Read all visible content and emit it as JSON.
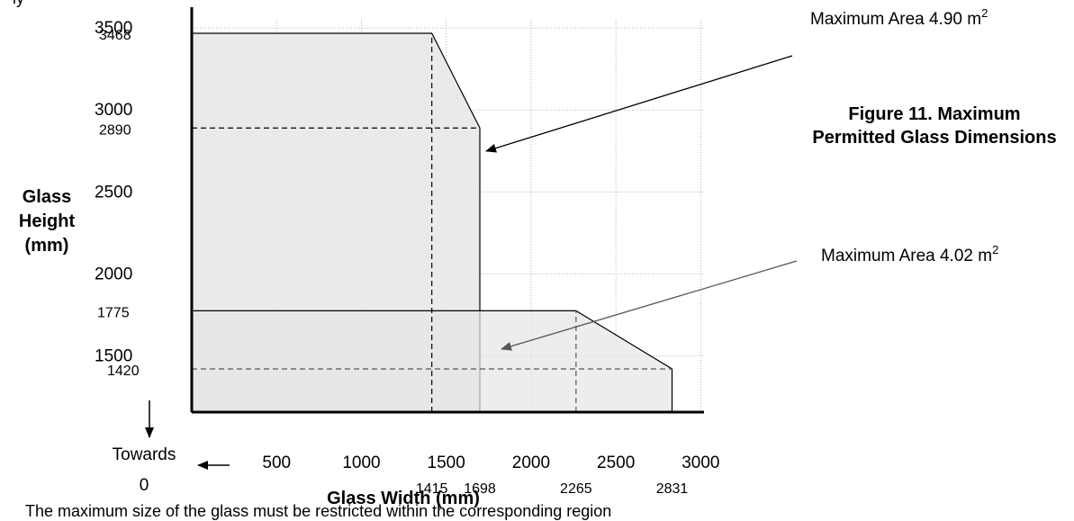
{
  "top_fragment": "ly",
  "bottom_fragment": "The maximum size of the glass must be restricted within the corresponding region",
  "chart_data": {
    "type": "area",
    "title": "Figure 11. Maximum Permitted Glass Dimensions",
    "title_lines": [
      "Figure 11. Maximum",
      "Permitted Glass Dimensions"
    ],
    "xlabel": "Glass Width (mm)",
    "ylabel_lines": [
      "Glass",
      "Height",
      "(mm)"
    ],
    "x_ticks": [
      500,
      1000,
      1500,
      2000,
      2500,
      3000
    ],
    "y_ticks": [
      2000,
      2500,
      3000,
      3500
    ],
    "y_ticks_low": [
      1500
    ],
    "grid": true,
    "xlim": [
      0,
      3200
    ],
    "ylim": [
      1500,
      3600
    ],
    "axis_break_labels": {
      "x": [
        "Towards",
        "0"
      ],
      "y_arrow": true
    },
    "series": [
      {
        "name": "Maximum Area 4.90 m²",
        "label_text": "Maximum Area 4.90 m",
        "label_sup": "2",
        "color": "#e6e6e6",
        "points": [
          [
            0,
            3468
          ],
          [
            1415,
            3468
          ],
          [
            1698,
            2890
          ],
          [
            1698,
            1500
          ],
          [
            0,
            1500
          ]
        ]
      },
      {
        "name": "Maximum Area 4.02 m²",
        "label_text": "Maximum Area 4.02 m",
        "label_sup": "2",
        "color": "#e6e6e6",
        "points": [
          [
            0,
            1775
          ],
          [
            2265,
            1775
          ],
          [
            2831,
            1420
          ],
          [
            2831,
            1500
          ],
          [
            0,
            1500
          ]
        ]
      }
    ],
    "dashed_guides": [
      {
        "x": [
          1415,
          1415
        ],
        "y": [
          1500,
          3468
        ]
      },
      {
        "x": [
          0,
          1698
        ],
        "y": [
          2890,
          2890
        ]
      },
      {
        "x": [
          2265,
          2265
        ],
        "y": [
          1500,
          1775
        ]
      },
      {
        "x": [
          0,
          2831
        ],
        "y": [
          1420,
          1420
        ]
      }
    ],
    "annotations": {
      "x_values": [
        1415,
        1698,
        2265,
        2831
      ],
      "y_values": [
        3468,
        2890,
        1775,
        1420
      ]
    }
  }
}
